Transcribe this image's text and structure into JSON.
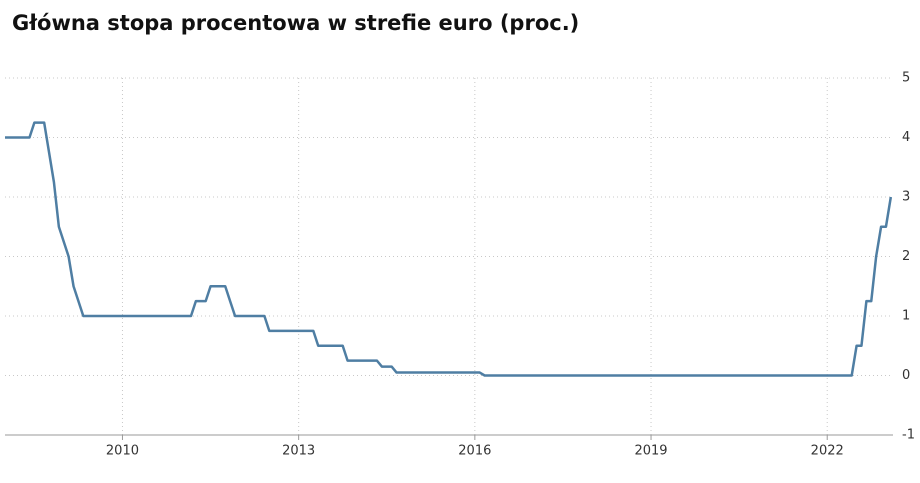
{
  "chart_data": {
    "type": "line",
    "title": "Główna stopa procentowa w strefie euro (proc.)",
    "x": [
      2008,
      2008.417,
      2008.5,
      2008.667,
      2008.75,
      2008.833,
      2008.917,
      2009.083,
      2009.167,
      2009.25,
      2009.333,
      2011.167,
      2011.25,
      2011.417,
      2011.5,
      2011.75,
      2011.833,
      2011.917,
      2012.417,
      2012.5,
      2013.25,
      2013.333,
      2013.75,
      2013.833,
      2014.333,
      2014.417,
      2014.583,
      2014.667,
      2016.083,
      2016.167,
      2022.417,
      2022.5,
      2022.583,
      2022.667,
      2022.75,
      2022.833,
      2022.917,
      2023,
      2023.083
    ],
    "values": [
      4,
      4,
      4.25,
      4.25,
      3.75,
      3.25,
      2.5,
      2,
      1.5,
      1.25,
      1,
      1,
      1.25,
      1.25,
      1.5,
      1.5,
      1.25,
      1,
      1,
      0.75,
      0.75,
      0.5,
      0.5,
      0.25,
      0.25,
      0.15,
      0.15,
      0.05,
      0.05,
      0,
      0,
      0.5,
      0.5,
      1.25,
      1.25,
      2,
      2.5,
      2.5,
      3
    ],
    "color": "#4f7ea3",
    "xlim": [
      2008,
      2023.12
    ],
    "xticks": [
      2010,
      2013,
      2016,
      2019,
      2022
    ],
    "ylim": [
      -1,
      5
    ],
    "yticks": [
      -1,
      0,
      1,
      2,
      3,
      4,
      5
    ],
    "grid": true
  }
}
